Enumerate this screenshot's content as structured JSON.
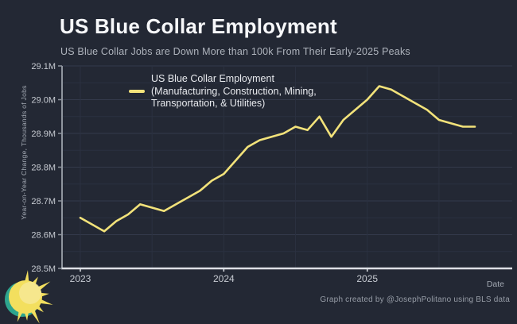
{
  "header": {
    "title": "US Blue Collar Employment",
    "subtitle": "US Blue Collar Jobs are Down More than 100k From Their Early-2025 Peaks"
  },
  "legend": {
    "line1": "US Blue Collar Employment",
    "line2": "(Manufacturing, Construction, Mining,",
    "line3": "Transportation, & Utilities)"
  },
  "chart_data": {
    "type": "line",
    "title": "US Blue Collar Employment",
    "xlabel": "Date",
    "ylabel": "Year-on-Year Change, Thousands of Jobs",
    "ylim": [
      28.5,
      29.1
    ],
    "y_tick_step_major": 0.1,
    "y_tick_step_minor": 0.05,
    "y_tick_labels": [
      "28.5M",
      "28.6M",
      "28.7M",
      "28.8M",
      "28.9M",
      "29.0M",
      "29.1M"
    ],
    "x_tick_labels": [
      "2023",
      "2024",
      "2025"
    ],
    "x_tick_indices": [
      0,
      12,
      24
    ],
    "x_minor_grid_indices": [
      0,
      6,
      12,
      18,
      24,
      30
    ],
    "grid": true,
    "legend_position": "top-center",
    "series": [
      {
        "name": "US Blue Collar Employment (Manufacturing, Construction, Mining, Transportation, & Utilities)",
        "color": "#f2e27a",
        "x": [
          "2023-01",
          "2023-02",
          "2023-03",
          "2023-04",
          "2023-05",
          "2023-06",
          "2023-07",
          "2023-08",
          "2023-09",
          "2023-10",
          "2023-11",
          "2023-12",
          "2024-01",
          "2024-02",
          "2024-03",
          "2024-04",
          "2024-05",
          "2024-06",
          "2024-07",
          "2024-08",
          "2024-09",
          "2024-10",
          "2024-11",
          "2024-12",
          "2025-01",
          "2025-02",
          "2025-03",
          "2025-04",
          "2025-05",
          "2025-06",
          "2025-07",
          "2025-08",
          "2025-09",
          "2025-10"
        ],
        "values": [
          28.65,
          28.63,
          28.61,
          28.64,
          28.66,
          28.69,
          28.68,
          28.67,
          28.69,
          28.71,
          28.73,
          28.76,
          28.78,
          28.82,
          28.86,
          28.88,
          28.89,
          28.9,
          28.92,
          28.91,
          28.95,
          28.89,
          28.94,
          28.97,
          29.0,
          29.04,
          29.03,
          29.01,
          28.99,
          28.97,
          28.94,
          28.93,
          28.92,
          28.92
        ]
      }
    ],
    "units": "millions of jobs"
  },
  "footer": {
    "xlabel": "Date",
    "attribution": "Graph created by @JosephPolitano using BLS data"
  },
  "colors": {
    "background": "#232834",
    "line": "#f2e27a",
    "grid_minor": "#2b3140",
    "grid_major": "#333a4b",
    "axis_left": "#8f959e",
    "axis_bottom": "#dde0e5",
    "tick_text": "#c6cad1",
    "sun_yellow": "#f3df5e",
    "sun_teal": "#2da58e"
  }
}
